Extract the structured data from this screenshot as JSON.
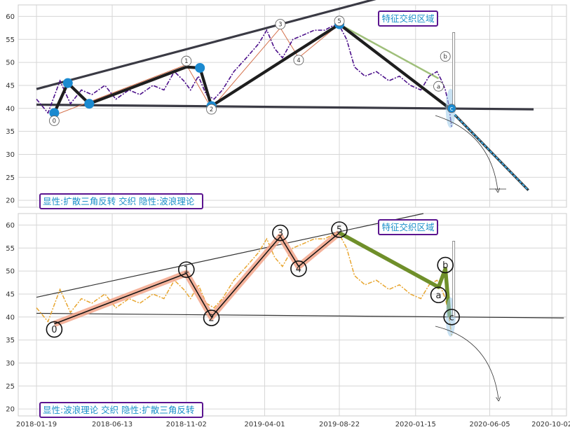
{
  "chart_data": [
    {
      "type": "line",
      "panel": "top",
      "ylim": [
        18.5,
        62.5
      ],
      "yticks": [
        20,
        25,
        30,
        35,
        40,
        45,
        50,
        55,
        60
      ],
      "grid": true,
      "annotation_box": "特征交织区域",
      "footer_box": "显性:扩散三角反转 交织 隐性:波浪理论",
      "series": [
        {
          "style": "price-dashed-purple",
          "x": [
            "2018-01-19",
            "2018-02-10",
            "2018-03-05",
            "2018-03-25",
            "2018-04-15",
            "2018-05-05",
            "2018-05-30",
            "2018-06-20",
            "2018-07-15",
            "2018-08-05",
            "2018-08-30",
            "2018-09-20",
            "2018-10-10",
            "2018-10-28",
            "2018-11-10",
            "2018-11-25",
            "2018-12-10",
            "2018-12-25",
            "2019-01-10",
            "2019-02-01",
            "2019-02-25",
            "2019-03-20",
            "2019-04-05",
            "2019-04-20",
            "2019-05-05",
            "2019-05-25",
            "2019-06-15",
            "2019-07-05",
            "2019-07-25",
            "2019-08-10",
            "2019-08-22",
            "2019-09-05",
            "2019-09-20",
            "2019-10-10",
            "2019-11-01",
            "2019-11-25",
            "2019-12-15",
            "2020-01-05",
            "2020-01-25",
            "2020-02-10",
            "2020-02-25",
            "2020-03-05",
            "2020-03-12",
            "2020-03-18",
            "2020-03-24"
          ],
          "y": [
            42,
            39,
            46,
            41,
            44,
            43,
            45,
            42,
            44,
            43,
            45,
            44,
            48,
            46,
            44,
            47,
            43,
            42,
            44,
            48,
            51,
            54,
            57,
            53,
            51,
            55,
            56,
            57,
            57,
            58,
            58,
            55,
            49,
            47,
            48,
            46,
            47,
            45,
            44,
            47,
            48,
            46,
            44,
            41,
            36
          ]
        }
      ],
      "overlays": {
        "upper_trendline": {
          "x": [
            "2018-01-19",
            "2019-12-10"
          ],
          "y": [
            44.2,
            65.0
          ]
        },
        "lower_trendline": {
          "x": [
            "2018-01-19",
            "2020-08-28"
          ],
          "y": [
            40.8,
            39.8
          ]
        },
        "zigzag_points": [
          {
            "x": "2018-02-22",
            "y": 39.0
          },
          {
            "x": "2018-03-20",
            "y": 45.5
          },
          {
            "x": "2018-04-30",
            "y": 41.0
          },
          {
            "x": "2018-11-02",
            "y": 49.0
          },
          {
            "x": "2018-11-28",
            "y": 48.8
          },
          {
            "x": "2018-12-20",
            "y": 40.5
          },
          {
            "x": "2019-08-22",
            "y": 58.3
          },
          {
            "x": "2020-03-20",
            "y": 40.0
          }
        ],
        "wave_labels": [
          {
            "text": "0",
            "x": "2018-02-22",
            "y": 37.3
          },
          {
            "text": "1",
            "x": "2018-11-02",
            "y": 50.3
          },
          {
            "text": "2",
            "x": "2018-12-20",
            "y": 39.8
          },
          {
            "text": "3",
            "x": "2019-05-01",
            "y": 58.3
          },
          {
            "text": "4",
            "x": "2019-06-05",
            "y": 50.5
          },
          {
            "text": "5",
            "x": "2019-08-22",
            "y": 59.0
          },
          {
            "text": "a",
            "x": "2020-02-28",
            "y": 44.8
          },
          {
            "text": "b",
            "x": "2020-03-12",
            "y": 51.3
          },
          {
            "text": "c",
            "x": "2020-03-24",
            "y": 40.0
          }
        ],
        "forecast_line": {
          "x": [
            "2020-03-30",
            "2020-08-18"
          ],
          "y": [
            38.6,
            22.2
          ]
        }
      }
    },
    {
      "type": "line",
      "panel": "bottom",
      "ylim": [
        18.5,
        62.5
      ],
      "yticks": [
        20,
        25,
        30,
        35,
        40,
        45,
        50,
        55,
        60
      ],
      "xticks": [
        "2018-01-19",
        "2018-06-13",
        "2018-11-02",
        "2019-04-01",
        "2019-08-22",
        "2020-01-15",
        "2020-06-05",
        "2020-10-02"
      ],
      "grid": true,
      "annotation_box": "特征交织区域",
      "footer_box": "显性:波浪理论 交织 隐性:扩散三角反转",
      "series": [
        {
          "style": "price-dashed-orange",
          "x": [
            "2018-01-19",
            "2018-02-10",
            "2018-03-05",
            "2018-03-25",
            "2018-04-15",
            "2018-05-05",
            "2018-05-30",
            "2018-06-20",
            "2018-07-15",
            "2018-08-05",
            "2018-08-30",
            "2018-09-20",
            "2018-10-10",
            "2018-10-28",
            "2018-11-10",
            "2018-11-25",
            "2018-12-10",
            "2018-12-25",
            "2019-01-10",
            "2019-02-01",
            "2019-02-25",
            "2019-03-20",
            "2019-04-05",
            "2019-04-20",
            "2019-05-05",
            "2019-05-25",
            "2019-06-15",
            "2019-07-05",
            "2019-07-25",
            "2019-08-10",
            "2019-08-22",
            "2019-09-05",
            "2019-09-20",
            "2019-10-10",
            "2019-11-01",
            "2019-11-25",
            "2019-12-15",
            "2020-01-05",
            "2020-01-25",
            "2020-02-10",
            "2020-02-25",
            "2020-03-05",
            "2020-03-12",
            "2020-03-18",
            "2020-03-24"
          ],
          "y": [
            42,
            39,
            46,
            41,
            44,
            43,
            45,
            42,
            44,
            43,
            45,
            44,
            48,
            46,
            44,
            47,
            43,
            42,
            44,
            48,
            51,
            54,
            57,
            53,
            51,
            55,
            56,
            57,
            57,
            58,
            58,
            55,
            49,
            47,
            48,
            46,
            47,
            45,
            44,
            47,
            48,
            46,
            44,
            41,
            36
          ]
        }
      ],
      "overlays": {
        "upper_trendline": {
          "x": [
            "2018-01-19",
            "2020-01-30"
          ],
          "y": [
            44.3,
            62.5
          ]
        },
        "lower_trendline": {
          "x": [
            "2018-01-19",
            "2020-10-25"
          ],
          "y": [
            40.8,
            39.8
          ]
        },
        "impulse_points": [
          {
            "x": "2018-02-22",
            "y": 38.5
          },
          {
            "x": "2018-11-02",
            "y": 49.5
          },
          {
            "x": "2018-12-20",
            "y": 40.0
          },
          {
            "x": "2019-05-01",
            "y": 57.5
          },
          {
            "x": "2019-06-05",
            "y": 51.0
          },
          {
            "x": "2019-08-22",
            "y": 58.3
          }
        ],
        "corrective_points": [
          {
            "x": "2019-08-22",
            "y": 58.3
          },
          {
            "x": "2020-02-28",
            "y": 46.5
          },
          {
            "x": "2020-03-12",
            "y": 50.5
          },
          {
            "x": "2020-03-20",
            "y": 40.0
          }
        ],
        "wave_labels": [
          {
            "text": "0",
            "x": "2018-02-22",
            "y": 37.3
          },
          {
            "text": "1",
            "x": "2018-11-02",
            "y": 50.3
          },
          {
            "text": "2",
            "x": "2018-12-20",
            "y": 39.8
          },
          {
            "text": "3",
            "x": "2019-05-01",
            "y": 58.3
          },
          {
            "text": "4",
            "x": "2019-06-05",
            "y": 50.5
          },
          {
            "text": "5",
            "x": "2019-08-22",
            "y": 59.0
          },
          {
            "text": "a",
            "x": "2020-02-28",
            "y": 44.8
          },
          {
            "text": "b",
            "x": "2020-03-12",
            "y": 51.3
          },
          {
            "text": "c",
            "x": "2020-03-24",
            "y": 40.0
          }
        ]
      }
    }
  ]
}
